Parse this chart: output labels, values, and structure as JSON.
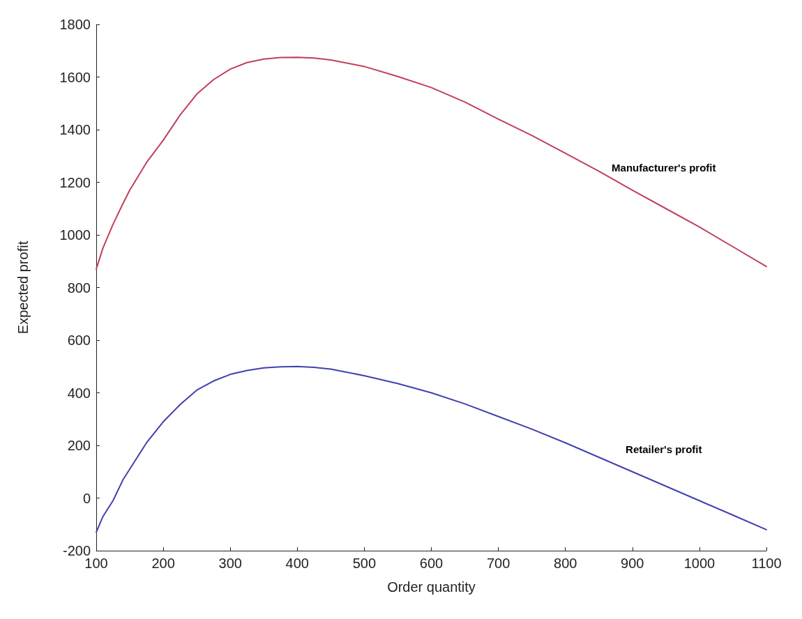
{
  "chart_data": {
    "type": "line",
    "xlabel": "Order quantity",
    "ylabel": "Expected profit",
    "xlim": [
      100,
      1100
    ],
    "xticks": [
      100,
      200,
      300,
      400,
      500,
      600,
      700,
      800,
      900,
      1000,
      1100
    ],
    "ylim": [
      -200,
      1800
    ],
    "yticks": [
      -200,
      0,
      200,
      400,
      600,
      800,
      1000,
      1200,
      1400,
      1600,
      1800
    ],
    "grid": false,
    "marker": "none",
    "line_style": "solid",
    "x": [
      100,
      110,
      125,
      140,
      150,
      175,
      200,
      225,
      250,
      275,
      300,
      325,
      350,
      375,
      400,
      425,
      450,
      500,
      550,
      600,
      650,
      700,
      750,
      800,
      850,
      900,
      950,
      1000,
      1050,
      1100
    ],
    "series": [
      {
        "name": "Manufacturer's profit",
        "color": "#c0405a",
        "values": [
          870,
          950,
          1040,
          1120,
          1170,
          1275,
          1360,
          1455,
          1535,
          1590,
          1630,
          1655,
          1668,
          1674,
          1675,
          1672,
          1665,
          1640,
          1602,
          1560,
          1505,
          1440,
          1378,
          1310,
          1242,
          1170,
          1100,
          1030,
          955,
          880
        ]
      },
      {
        "name": "Retailer's profit",
        "color": "#4040b0",
        "values": [
          -130,
          -70,
          -10,
          70,
          110,
          210,
          290,
          355,
          410,
          445,
          470,
          485,
          495,
          499,
          500,
          497,
          490,
          465,
          435,
          400,
          358,
          310,
          262,
          210,
          155,
          100,
          45,
          -10,
          -65,
          -120
        ]
      }
    ]
  }
}
